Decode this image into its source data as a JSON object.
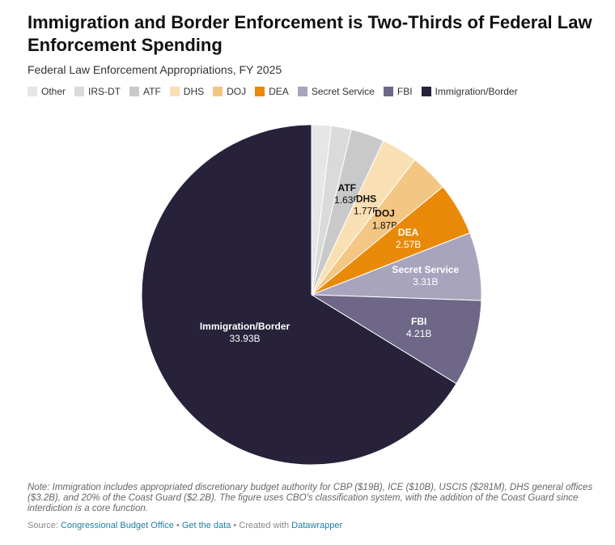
{
  "header": {
    "title": "Immigration and Border Enforcement is Two-Thirds of Federal Law Enforcement Spending",
    "subtitle": "Federal Law Enforcement Appropriations, FY 2025"
  },
  "legend": [
    {
      "label": "Other",
      "color": "#e6e6e6"
    },
    {
      "label": "IRS-DT",
      "color": "#dadada"
    },
    {
      "label": "ATF",
      "color": "#c9c9c9"
    },
    {
      "label": "DHS",
      "color": "#f9dfb4"
    },
    {
      "label": "DOJ",
      "color": "#f3c684"
    },
    {
      "label": "DEA",
      "color": "#e88a08"
    },
    {
      "label": "Secret Service",
      "color": "#a8a4bd"
    },
    {
      "label": "FBI",
      "color": "#6e6787"
    },
    {
      "label": "Immigration/Border",
      "color": "#27223a"
    }
  ],
  "chart_data": {
    "type": "pie",
    "unit": "B",
    "slices": [
      {
        "label": "Other",
        "value": 0.95,
        "color": "#e6e6e6",
        "show_label": false,
        "value_text": ""
      },
      {
        "label": "IRS-DT",
        "value": 0.98,
        "color": "#dadada",
        "show_label": false,
        "value_text": ""
      },
      {
        "label": "ATF",
        "value": 1.63,
        "color": "#c9c9c9",
        "show_label": true,
        "value_text": "1.63B"
      },
      {
        "label": "DHS",
        "value": 1.77,
        "color": "#f9dfb4",
        "show_label": true,
        "value_text": "1.77B"
      },
      {
        "label": "DOJ",
        "value": 1.87,
        "color": "#f3c684",
        "show_label": true,
        "value_text": "1.87B"
      },
      {
        "label": "DEA",
        "value": 2.57,
        "color": "#e88a08",
        "show_label": true,
        "value_text": "2.57B"
      },
      {
        "label": "Secret Service",
        "value": 3.31,
        "color": "#a8a4bd",
        "show_label": true,
        "value_text": "3.31B"
      },
      {
        "label": "FBI",
        "value": 4.21,
        "color": "#6e6787",
        "show_label": true,
        "value_text": "4.21B"
      },
      {
        "label": "Immigration/Border",
        "value": 33.93,
        "color": "#27223a",
        "show_label": true,
        "value_text": "33.93B"
      }
    ]
  },
  "footer": {
    "note": "Note: Immigration includes appropriated discretionary budget authority for CBP ($19B), ICE ($10B), USCIS ($281M), DHS general offices ($3.2B), and 20% of the Coast Guard ($2.2B). The figure uses CBO's classification system, with the addition of the Coast Guard since interdiction is a core function.",
    "source_prefix": "Source:",
    "source_link": "Congressional Budget Office",
    "separator": "•",
    "data_link": "Get the data",
    "created_with": "Created with",
    "tool_link": "Datawrapper"
  }
}
